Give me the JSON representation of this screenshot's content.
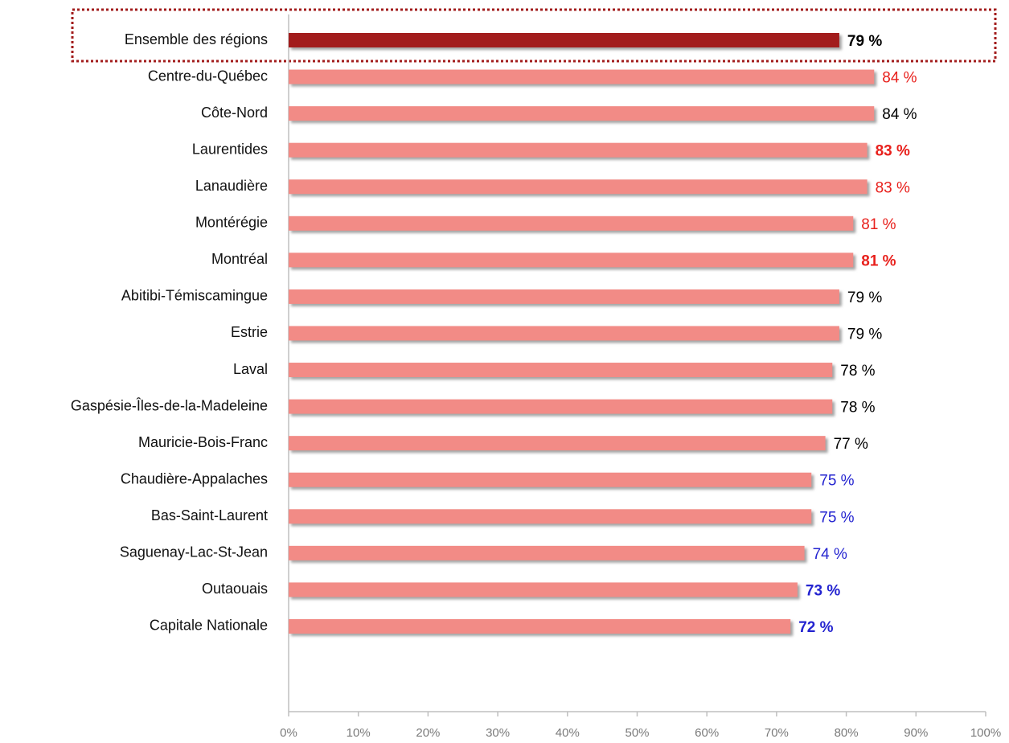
{
  "chart_data": {
    "type": "hbar",
    "categories": [
      "Ensemble des régions",
      "Centre-du-Québec",
      "Côte-Nord",
      "Laurentides",
      "Lanaudière",
      "Montérégie",
      "Montréal",
      "Abitibi-Témiscamingue",
      "Estrie",
      "Laval",
      "Gaspésie-Îles-de-la-Madeleine",
      "Mauricie-Bois-Franc",
      "Chaudière-Appalaches",
      "Bas-Saint-Laurent",
      "Saguenay-Lac-St-Jean",
      "Outaouais",
      "Capitale Nationale"
    ],
    "values": [
      79,
      84,
      84,
      83,
      83,
      81,
      81,
      79,
      79,
      78,
      78,
      77,
      75,
      75,
      74,
      73,
      72
    ],
    "value_labels": [
      "79 %",
      "84 %",
      "84 %",
      "83 %",
      "83 %",
      "81 %",
      "81 %",
      "79 %",
      "79 %",
      "78 %",
      "78 %",
      "77 %",
      "75 %",
      "75 %",
      "74 %",
      "73 %",
      "72 %"
    ],
    "colors": [
      "#a21c1c",
      "#f28b86",
      "#f28b86",
      "#f28b86",
      "#f28b86",
      "#f28b86",
      "#f28b86",
      "#f28b86",
      "#f28b86",
      "#f28b86",
      "#f28b86",
      "#f28b86",
      "#f28b86",
      "#f28b86",
      "#f28b86",
      "#f28b86",
      "#f28b86"
    ],
    "label_colors": [
      "#000000",
      "#e8201c",
      "#000000",
      "#e8201c",
      "#e8201c",
      "#e8201c",
      "#e8201c",
      "#000000",
      "#000000",
      "#000000",
      "#000000",
      "#000000",
      "#2424d0",
      "#2424d0",
      "#2424d0",
      "#2424d0",
      "#2424d0"
    ],
    "label_bold": [
      true,
      false,
      false,
      true,
      false,
      false,
      true,
      false,
      false,
      false,
      false,
      false,
      false,
      false,
      false,
      true,
      true
    ],
    "xlim": [
      0,
      100
    ],
    "xticks": [
      {
        "value": 0,
        "label": "0%"
      },
      {
        "value": 10,
        "label": "10%"
      },
      {
        "value": 20,
        "label": "20%"
      },
      {
        "value": 30,
        "label": "30%"
      },
      {
        "value": 40,
        "label": "40%"
      },
      {
        "value": 50,
        "label": "50%"
      },
      {
        "value": 60,
        "label": "60%"
      },
      {
        "value": 70,
        "label": "70%"
      },
      {
        "value": 80,
        "label": "80%"
      },
      {
        "value": 90,
        "label": "90%"
      },
      {
        "value": 100,
        "label": "100%"
      }
    ]
  }
}
